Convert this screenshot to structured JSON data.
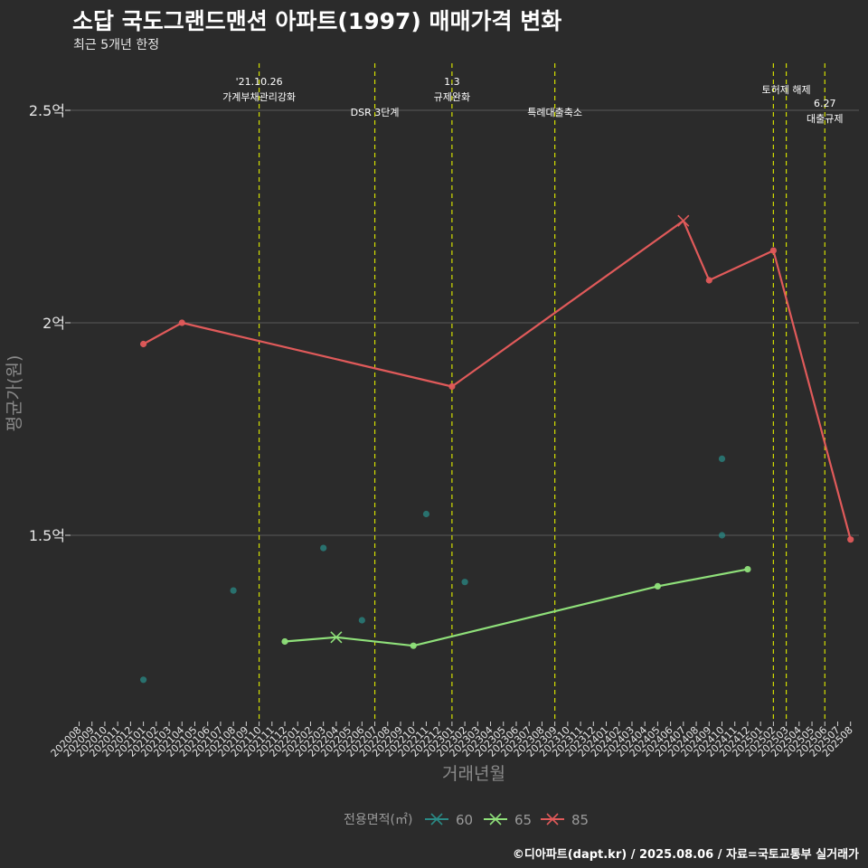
{
  "title": "소답 국도그랜드맨션 아파트(1997) 매매가격 변화",
  "subtitle": "최근 5개년 한정",
  "caption": "©디아파트(dapt.kr) / 2025.08.06 / 자료=국토교통부 실거래가",
  "chart_data": {
    "type": "line",
    "xlabel": "거래년월",
    "ylabel": "평균가(원)",
    "x_ticks": [
      "202008",
      "202009",
      "202010",
      "202011",
      "202012",
      "202101",
      "202102",
      "202103",
      "202104",
      "202105",
      "202106",
      "202107",
      "202108",
      "202109",
      "202110",
      "202111",
      "202112",
      "202201",
      "202202",
      "202203",
      "202204",
      "202205",
      "202206",
      "202207",
      "202208",
      "202209",
      "202210",
      "202211",
      "202212",
      "202301",
      "202302",
      "202303",
      "202304",
      "202305",
      "202306",
      "202307",
      "202308",
      "202309",
      "202310",
      "202311",
      "202312",
      "202401",
      "202402",
      "202403",
      "202404",
      "202405",
      "202406",
      "202407",
      "202408",
      "202409",
      "202410",
      "202411",
      "202412",
      "202501",
      "202502",
      "202503",
      "202504",
      "202505",
      "202506",
      "202507",
      "202508"
    ],
    "y_ticks": [
      {
        "value": 1.5,
        "label": "1.5억"
      },
      {
        "value": 2.0,
        "label": "2억"
      },
      {
        "value": 2.5,
        "label": "2.5억"
      }
    ],
    "ylim": [
      1.1,
      2.6
    ],
    "legend_title": "전용면적(㎡)",
    "legend_position": "bottom",
    "series": [
      {
        "name": "60",
        "color": "#2a8a85",
        "line": false,
        "points": [
          [
            "202101",
            1.16
          ],
          [
            "202108",
            1.37
          ],
          [
            "202203",
            1.47
          ],
          [
            "202206",
            1.3
          ],
          [
            "202211",
            1.55
          ],
          [
            "202302",
            1.39
          ],
          [
            "202410",
            1.68
          ],
          [
            "202410",
            1.5
          ]
        ]
      },
      {
        "name": "65",
        "color": "#8fe07a",
        "line": true,
        "points": [
          [
            "202112",
            1.25
          ],
          [
            "202204",
            1.26
          ],
          [
            "202210",
            1.24
          ],
          [
            "202405",
            1.38
          ],
          [
            "202412",
            1.42
          ]
        ],
        "cross_at": [
          "202204"
        ]
      },
      {
        "name": "85",
        "color": "#e05a5a",
        "line": true,
        "points": [
          [
            "202101",
            1.95
          ],
          [
            "202104",
            2.0
          ],
          [
            "202301",
            1.85
          ],
          [
            "202407",
            2.24
          ],
          [
            "202409",
            2.1
          ],
          [
            "202502",
            2.17
          ],
          [
            "202508",
            1.49
          ]
        ],
        "cross_at": [
          "202407"
        ]
      }
    ],
    "events": [
      {
        "x": "202110",
        "lines": [
          "'21.10.26",
          "가계부채관리강화"
        ],
        "level": 0
      },
      {
        "x": "202207",
        "lines": [
          "DSR 3단계"
        ],
        "level": 1
      },
      {
        "x": "202301",
        "lines": [
          "1.3",
          "규제완화"
        ],
        "level": 0
      },
      {
        "x": "202309",
        "lines": [
          "특례대출축소"
        ],
        "level": 1
      },
      {
        "x": "202502",
        "lines": [],
        "level": 0
      },
      {
        "x": "202503",
        "lines": [
          "토허제 해제"
        ],
        "level": 0
      },
      {
        "x": "202506",
        "lines": [
          "6.27",
          "대출규제"
        ],
        "level": 2
      }
    ],
    "event_line_color": "#d4e000",
    "grid": true
  }
}
